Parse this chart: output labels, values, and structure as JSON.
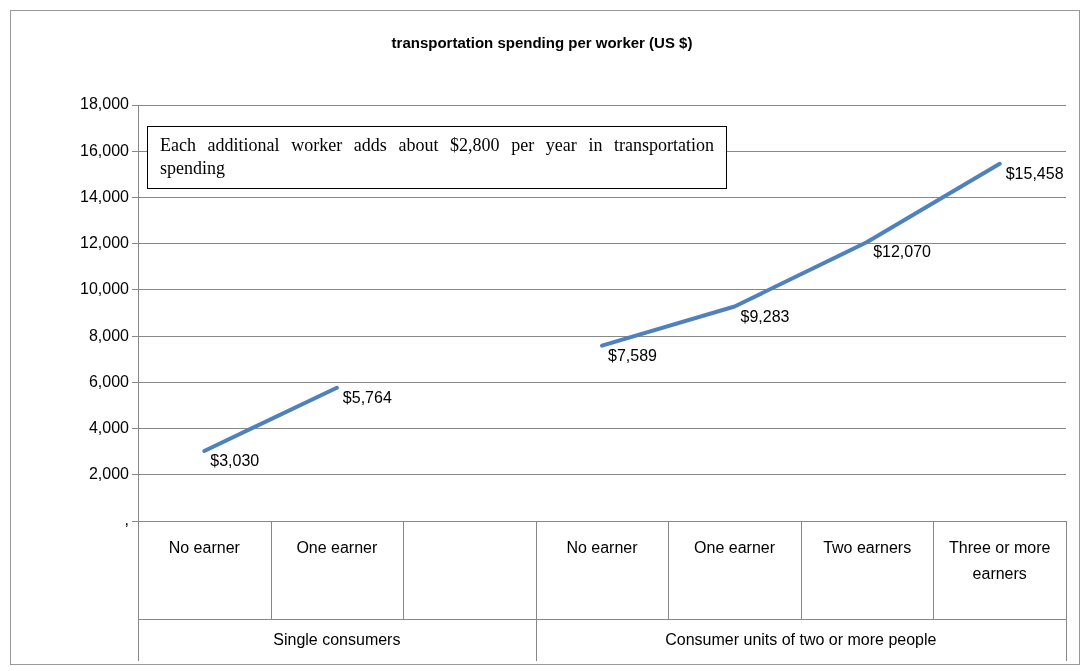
{
  "chart_data": {
    "type": "line",
    "title": "transportation spending per worker (US $)",
    "categories": [
      "No earner",
      "One earner",
      null,
      "No earner",
      "One earner",
      "Two earners",
      "Three or more earners"
    ],
    "series": [
      {
        "color": "#4f81bd",
        "values": [
          3030,
          5764,
          null,
          7589,
          9283,
          12070,
          15458
        ],
        "value_labels": [
          "$3,030",
          "$5,764",
          null,
          "$7,589",
          "$9,283",
          "$12,070",
          "$15,458"
        ]
      }
    ],
    "annotations": [
      "Each additional worker adds about $2,800 per year in transportation spending",
      "Single consumers",
      "Consumer units of two or more people"
    ],
    "ylim": [
      0,
      18000
    ],
    "yticks": [
      {
        "value": 0,
        "label": ","
      },
      {
        "value": 2000,
        "label": "2,000"
      },
      {
        "value": 4000,
        "label": "4,000"
      },
      {
        "value": 6000,
        "label": "6,000"
      },
      {
        "value": 8000,
        "label": "8,000"
      },
      {
        "value": 10000,
        "label": "10,000"
      },
      {
        "value": 12000,
        "label": "12,000"
      },
      {
        "value": 14000,
        "label": "14,000"
      },
      {
        "value": 16000,
        "label": "16,000"
      },
      {
        "value": 18000,
        "label": "18,000"
      }
    ],
    "grid": "y",
    "legend": false,
    "marker": "none",
    "line_style": "solid"
  }
}
